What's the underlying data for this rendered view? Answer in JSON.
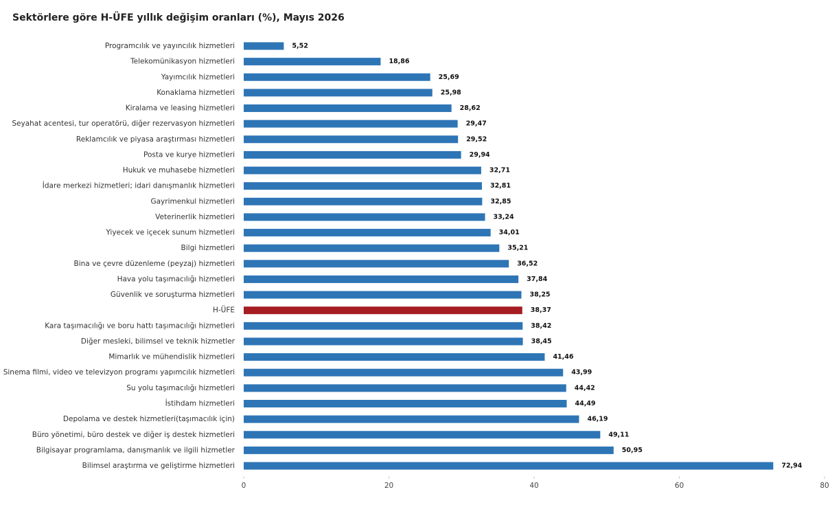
{
  "chart_data": {
    "type": "barh",
    "title": "Sektörlere göre H-ÜFE yıllık değişim oranları (%), Mayıs 2026",
    "categories": [
      "Programcılık ve yayıncılık hizmetleri",
      "Telekomünikasyon hizmetleri",
      "Yayımcılık hizmetleri",
      "Konaklama hizmetleri",
      "Kiralama ve leasing hizmetleri",
      "Seyahat acentesi, tur operatörü, diğer rezervasyon hizmetleri",
      "Reklamcılık ve piyasa araştırması hizmetleri",
      "Posta ve kurye hizmetleri",
      "Hukuk ve muhasebe hizmetleri",
      "İdare merkezi hizmetleri; idari danışmanlık hizmetleri",
      "Gayrimenkul hizmetleri",
      "Veterinerlik hizmetleri",
      "Yiyecek ve içecek sunum hizmetleri",
      "Bilgi hizmetleri",
      "Bina ve çevre düzenleme (peyzaj) hizmetleri",
      "Hava yolu taşımacılığı hizmetleri",
      "Güvenlik ve soruşturma hizmetleri",
      "H-ÜFE",
      "Kara taşımacılığı ve boru hattı taşımacılığı hizmetleri",
      "Diğer mesleki, bilimsel ve teknik hizmetler",
      "Mimarlık ve mühendislik hizmetleri",
      "Sinema filmi, video ve televizyon programı yapımcılık hizmetleri",
      "Su yolu taşımacılığı hizmetleri",
      "İstihdam hizmetleri",
      "Depolama ve destek hizmetleri(taşımacılık için)",
      "Büro yönetimi, büro destek ve diğer iş destek hizmetleri",
      "Bilgisayar programlama, danışmanlık ve ilgili hizmetler",
      "Bilimsel araştırma ve geliştirme hizmetleri"
    ],
    "values": [
      5.52,
      18.86,
      25.69,
      25.98,
      28.62,
      29.47,
      29.52,
      29.94,
      32.71,
      32.81,
      32.85,
      33.24,
      34.01,
      35.21,
      36.52,
      37.84,
      38.25,
      38.37,
      38.42,
      38.45,
      41.46,
      43.99,
      44.42,
      44.49,
      46.19,
      49.11,
      50.95,
      72.94
    ],
    "value_labels": [
      "5,52",
      "18,86",
      "25,69",
      "25,98",
      "28,62",
      "29,47",
      "29,52",
      "29,94",
      "32,71",
      "32,81",
      "32,85",
      "33,24",
      "34,01",
      "35,21",
      "36,52",
      "37,84",
      "38,25",
      "38,37",
      "38,42",
      "38,45",
      "41,46",
      "43,99",
      "44,42",
      "44,49",
      "46,19",
      "49,11",
      "50,95",
      "72,94"
    ],
    "colors": [
      "#2e75b6",
      "#2e75b6",
      "#2e75b6",
      "#2e75b6",
      "#2e75b6",
      "#2e75b6",
      "#2e75b6",
      "#2e75b6",
      "#2e75b6",
      "#2e75b6",
      "#2e75b6",
      "#2e75b6",
      "#2e75b6",
      "#2e75b6",
      "#2e75b6",
      "#2e75b6",
      "#2e75b6",
      "#a51c22",
      "#2e75b6",
      "#2e75b6",
      "#2e75b6",
      "#2e75b6",
      "#2e75b6",
      "#2e75b6",
      "#2e75b6",
      "#2e75b6",
      "#2e75b6",
      "#2e75b6"
    ],
    "xlim": [
      0,
      80
    ],
    "xticks": [
      0,
      20,
      40,
      60,
      80
    ]
  }
}
